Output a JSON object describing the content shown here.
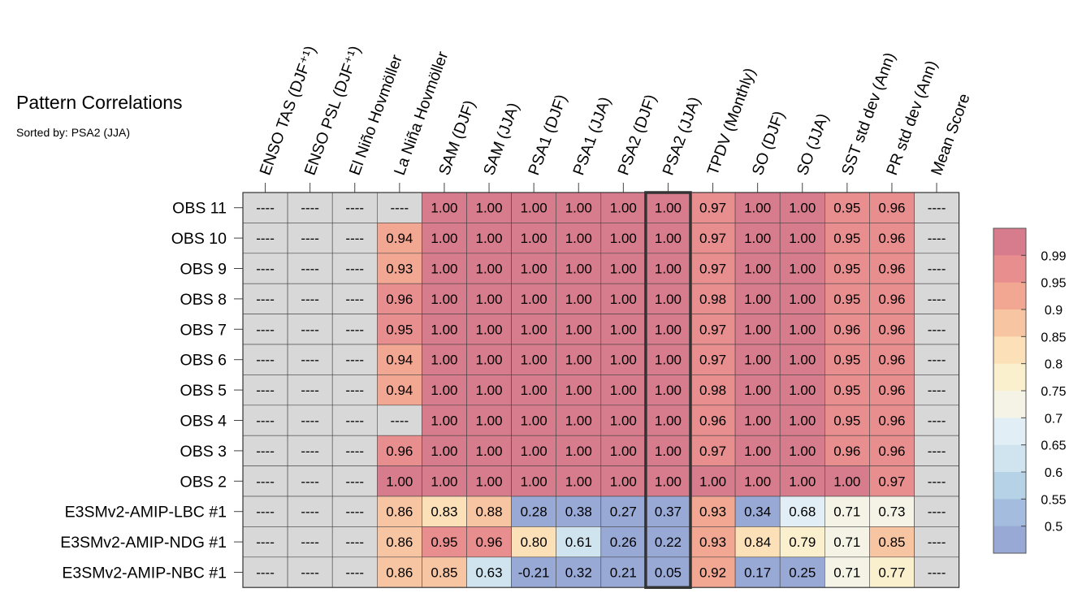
{
  "header": {
    "title": "Pattern Correlations",
    "subtitle": "Sorted by: PSA2 (JJA)"
  },
  "chart_data": {
    "type": "heatmap",
    "columns": [
      "ENSO TAS (DJF⁺¹)",
      "ENSO PSL (DJF⁺¹)",
      "El Niño Hovmöller",
      "La Niña Hovmöller",
      "SAM (DJF)",
      "SAM (JJA)",
      "PSA1 (DJF)",
      "PSA1 (JJA)",
      "PSA2 (DJF)",
      "PSA2 (JJA)",
      "TPDV (Monthly)",
      "SO (DJF)",
      "SO (JJA)",
      "SST std dev (Ann)",
      "PR std dev (Ann)",
      "Mean Score"
    ],
    "rows": [
      "OBS 11",
      "OBS 10",
      "OBS 9",
      "OBS 8",
      "OBS 7",
      "OBS 6",
      "OBS 5",
      "OBS 4",
      "OBS 3",
      "OBS 2",
      "E3SMv2-AMIP-LBC #1",
      "E3SMv2-AMIP-NDG #1",
      "E3SMv2-AMIP-NBC #1"
    ],
    "highlight_column": "PSA2 (JJA)",
    "missing_label": "----",
    "values": [
      [
        null,
        null,
        null,
        null,
        "1.00",
        "1.00",
        "1.00",
        "1.00",
        "1.00",
        "1.00",
        "0.97",
        "1.00",
        "1.00",
        "0.95",
        "0.96",
        null
      ],
      [
        null,
        null,
        null,
        "0.94",
        "1.00",
        "1.00",
        "1.00",
        "1.00",
        "1.00",
        "1.00",
        "0.97",
        "1.00",
        "1.00",
        "0.95",
        "0.96",
        null
      ],
      [
        null,
        null,
        null,
        "0.93",
        "1.00",
        "1.00",
        "1.00",
        "1.00",
        "1.00",
        "1.00",
        "0.97",
        "1.00",
        "1.00",
        "0.95",
        "0.96",
        null
      ],
      [
        null,
        null,
        null,
        "0.96",
        "1.00",
        "1.00",
        "1.00",
        "1.00",
        "1.00",
        "1.00",
        "0.98",
        "1.00",
        "1.00",
        "0.95",
        "0.96",
        null
      ],
      [
        null,
        null,
        null,
        "0.95",
        "1.00",
        "1.00",
        "1.00",
        "1.00",
        "1.00",
        "1.00",
        "0.97",
        "1.00",
        "1.00",
        "0.96",
        "0.96",
        null
      ],
      [
        null,
        null,
        null,
        "0.94",
        "1.00",
        "1.00",
        "1.00",
        "1.00",
        "1.00",
        "1.00",
        "0.97",
        "1.00",
        "1.00",
        "0.95",
        "0.96",
        null
      ],
      [
        null,
        null,
        null,
        "0.94",
        "1.00",
        "1.00",
        "1.00",
        "1.00",
        "1.00",
        "1.00",
        "0.98",
        "1.00",
        "1.00",
        "0.95",
        "0.96",
        null
      ],
      [
        null,
        null,
        null,
        null,
        "1.00",
        "1.00",
        "1.00",
        "1.00",
        "1.00",
        "1.00",
        "0.96",
        "1.00",
        "1.00",
        "0.95",
        "0.96",
        null
      ],
      [
        null,
        null,
        null,
        "0.96",
        "1.00",
        "1.00",
        "1.00",
        "1.00",
        "1.00",
        "1.00",
        "0.97",
        "1.00",
        "1.00",
        "0.96",
        "0.96",
        null
      ],
      [
        null,
        null,
        null,
        "1.00",
        "1.00",
        "1.00",
        "1.00",
        "1.00",
        "1.00",
        "1.00",
        "1.00",
        "1.00",
        "1.00",
        "1.00",
        "0.97",
        null
      ],
      [
        null,
        null,
        null,
        "0.86",
        "0.83",
        "0.88",
        "0.28",
        "0.38",
        "0.27",
        "0.37",
        "0.93",
        "0.34",
        "0.68",
        "0.71",
        "0.73",
        null
      ],
      [
        null,
        null,
        null,
        "0.86",
        "0.95",
        "0.96",
        "0.80",
        "0.61",
        "0.26",
        "0.22",
        "0.93",
        "0.84",
        "0.79",
        "0.71",
        "0.85",
        null
      ],
      [
        null,
        null,
        null,
        "0.86",
        "0.85",
        "0.63",
        "-0.21",
        "0.32",
        "0.21",
        "0.05",
        "0.92",
        "0.17",
        "0.25",
        "0.71",
        "0.77",
        null
      ]
    ],
    "colorbar": {
      "tick_labels": [
        "0.99",
        "0.95",
        "0.9",
        "0.85",
        "0.8",
        "0.75",
        "0.7",
        "0.65",
        "0.6",
        "0.55",
        "0.5"
      ],
      "colors_top_to_bottom": [
        "#d67c8c",
        "#e88e8e",
        "#f2a792",
        "#f8c5a3",
        "#fce0b8",
        "#fbf0cd",
        "#f4f3e6",
        "#e2eef5",
        "#cfe4ef",
        "#b6d2e6",
        "#a4bcde",
        "#98a9d6"
      ]
    },
    "missing_color": "#d8d8d8",
    "highlight_border_color": "#333333"
  }
}
